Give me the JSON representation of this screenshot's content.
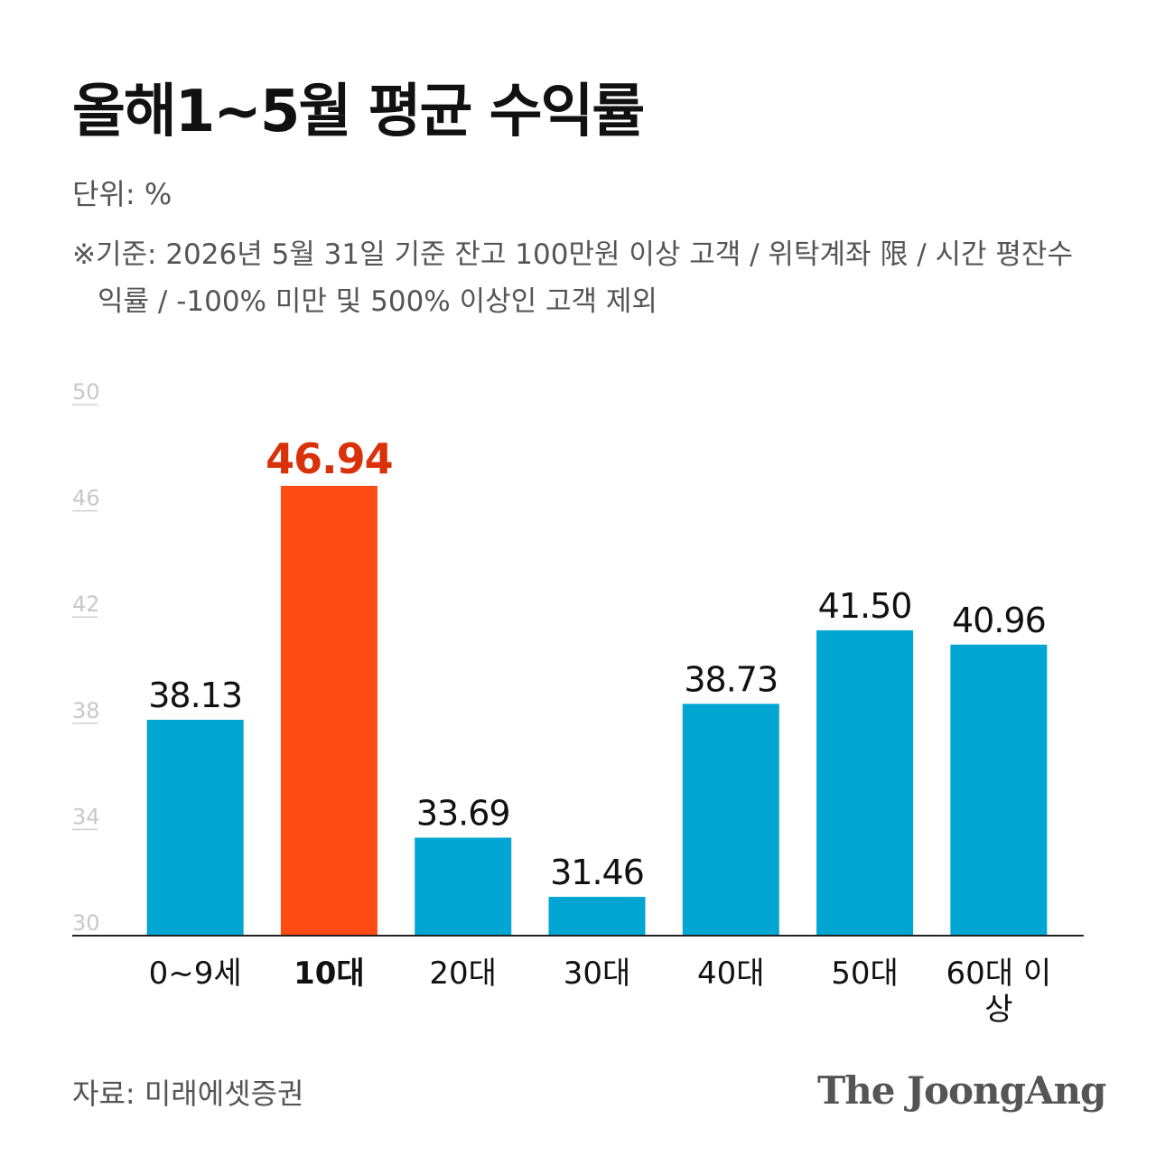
{
  "chart_data": {
    "type": "bar",
    "title": "올해1~5월 평균 수익률",
    "unit": "단위: %",
    "note": "※기준: 2026년 5월 31일 기준 잔고 100만원 이상  고객 / 위탁계좌 限 / 시간 평잔수익률 / -100% 미만 및 500% 이상인 고객 제외",
    "source": "자료: 미래에셋증권",
    "brand": "The JoongAng",
    "categories": [
      "0~9세",
      "10대",
      "20대",
      "30대",
      "40대",
      "50대",
      "60대 이상"
    ],
    "values": [
      38.13,
      46.94,
      33.69,
      31.46,
      38.73,
      41.5,
      40.96
    ],
    "value_labels": [
      "38.13",
      "46.94",
      "33.69",
      "31.46",
      "38.73",
      "41.50",
      "40.96"
    ],
    "color": "#00a5d2",
    "highlight_index": 1,
    "highlight_color": "#ff4b14",
    "highlight_label_color": "#d9320a",
    "ylim": [
      30,
      50
    ],
    "yticks": [
      30,
      34,
      38,
      42,
      46,
      50
    ]
  }
}
